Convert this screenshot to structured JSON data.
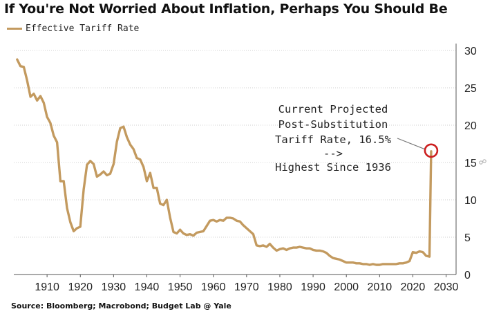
{
  "title": "If You're Not Worried About Inflation, Perhaps You Should Be",
  "source": "Source: Bloomberg; Macrobond; Budget Lab @ Yale",
  "colors": {
    "series": "#c39a5f",
    "highlight": "#cc1f1f",
    "grid": "#d0d0d0"
  },
  "chart_data": {
    "type": "line",
    "title": "If You're Not Worried About Inflation, Perhaps You Should Be",
    "xlabel": "",
    "ylabel": "",
    "xlim": [
      1900,
      2033
    ],
    "ylim": [
      0,
      30
    ],
    "x_ticks": [
      1910,
      1920,
      1930,
      1940,
      1950,
      1960,
      1970,
      1980,
      1990,
      2000,
      2010,
      2020,
      2030
    ],
    "y_ticks": [
      0,
      5,
      10,
      15,
      20,
      25,
      30
    ],
    "grid": "horizontal-dotted",
    "legend": "top-left",
    "series": [
      {
        "name": "Effective Tariff Rate",
        "x": [
          1901,
          1902,
          1903,
          1904,
          1905,
          1906,
          1907,
          1908,
          1909,
          1910,
          1911,
          1912,
          1913,
          1914,
          1915,
          1916,
          1917,
          1918,
          1919,
          1920,
          1921,
          1922,
          1923,
          1924,
          1925,
          1926,
          1927,
          1928,
          1929,
          1930,
          1931,
          1932,
          1933,
          1934,
          1935,
          1936,
          1937,
          1938,
          1939,
          1940,
          1941,
          1942,
          1943,
          1944,
          1945,
          1946,
          1947,
          1948,
          1949,
          1950,
          1951,
          1952,
          1953,
          1954,
          1955,
          1956,
          1957,
          1958,
          1959,
          1960,
          1961,
          1962,
          1963,
          1964,
          1965,
          1966,
          1967,
          1968,
          1969,
          1970,
          1971,
          1972,
          1973,
          1974,
          1975,
          1976,
          1977,
          1978,
          1979,
          1980,
          1981,
          1982,
          1983,
          1984,
          1985,
          1986,
          1987,
          1988,
          1989,
          1990,
          1991,
          1992,
          1993,
          1994,
          1995,
          1996,
          1997,
          1998,
          1999,
          2000,
          2001,
          2002,
          2003,
          2004,
          2005,
          2006,
          2007,
          2008,
          2009,
          2010,
          2011,
          2012,
          2013,
          2014,
          2015,
          2016,
          2017,
          2018,
          2019,
          2020,
          2021,
          2022,
          2023,
          2024,
          2025
        ],
        "values": [
          28.8,
          27.9,
          27.8,
          26.0,
          23.8,
          24.2,
          23.3,
          23.9,
          23.0,
          21.1,
          20.3,
          18.6,
          17.7,
          12.5,
          12.5,
          8.9,
          7.0,
          5.8,
          6.2,
          6.4,
          11.4,
          14.7,
          15.2,
          14.8,
          13.1,
          13.4,
          13.8,
          13.3,
          13.5,
          14.8,
          17.8,
          19.6,
          19.8,
          18.4,
          17.4,
          16.8,
          15.6,
          15.4,
          14.4,
          12.5,
          13.6,
          11.6,
          11.6,
          9.5,
          9.3,
          10.0,
          7.6,
          5.7,
          5.5,
          6.0,
          5.5,
          5.3,
          5.4,
          5.2,
          5.6,
          5.7,
          5.8,
          6.5,
          7.2,
          7.3,
          7.1,
          7.3,
          7.2,
          7.6,
          7.6,
          7.5,
          7.2,
          7.1,
          6.6,
          6.2,
          5.8,
          5.4,
          3.9,
          3.8,
          3.9,
          3.7,
          4.1,
          3.6,
          3.2,
          3.4,
          3.5,
          3.3,
          3.5,
          3.6,
          3.6,
          3.7,
          3.6,
          3.5,
          3.5,
          3.3,
          3.2,
          3.2,
          3.1,
          2.9,
          2.5,
          2.2,
          2.1,
          2.0,
          1.8,
          1.6,
          1.6,
          1.6,
          1.5,
          1.5,
          1.4,
          1.4,
          1.3,
          1.4,
          1.3,
          1.3,
          1.4,
          1.4,
          1.4,
          1.4,
          1.4,
          1.5,
          1.5,
          1.6,
          1.8,
          3.0,
          2.9,
          3.1,
          3.0,
          2.5,
          2.4
        ]
      },
      {
        "name": "Current Projected Post-Substitution Tariff Rate",
        "x": [
          2025.5
        ],
        "values": [
          16.5
        ]
      }
    ],
    "annotations": [
      {
        "lines": [
          "Current Projected",
          "Post-Substitution",
          "Tariff Rate, 16.5%",
          "-->",
          "Highest Since 1936"
        ],
        "x": 2025.5,
        "y": 16.5
      }
    ]
  }
}
